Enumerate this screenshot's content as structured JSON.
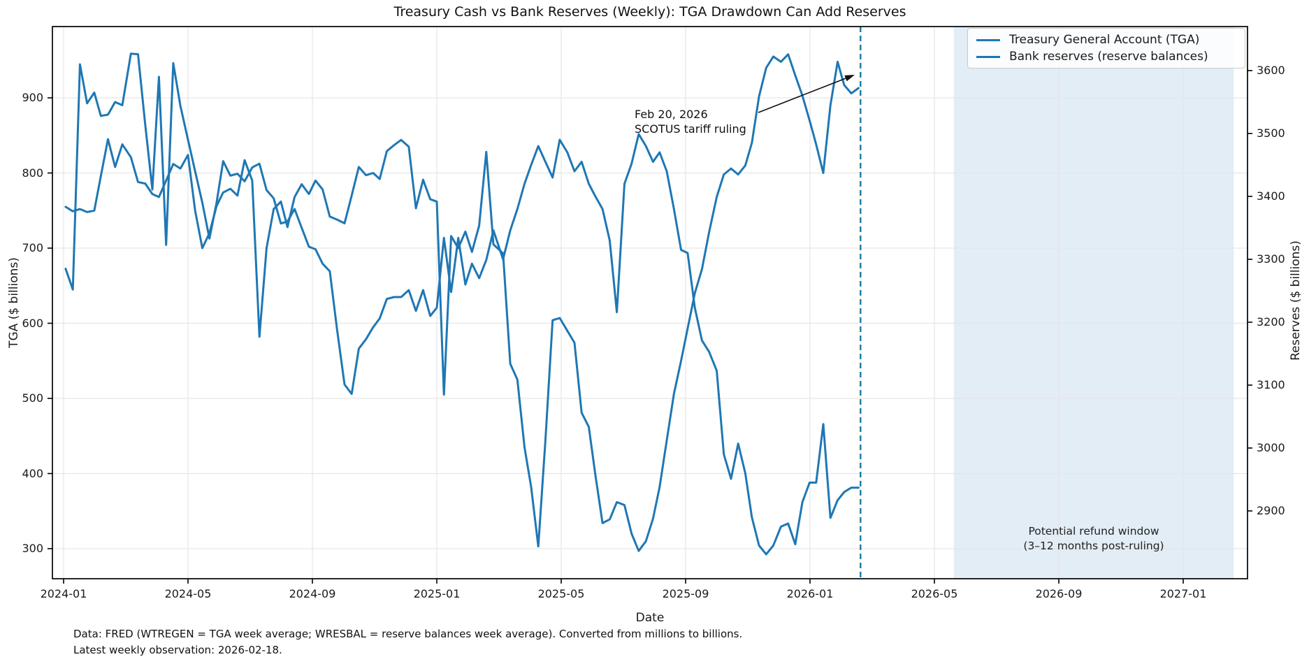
{
  "title": "Treasury Cash vs Bank Reserves (Weekly): TGA Drawdown Can Add Reserves",
  "axes": {
    "x_label": "Date",
    "y_left_label": "TGA ($ billions)",
    "y_right_label": "Reserves ($ billions)",
    "x_tick_labels": [
      "2024-01",
      "2024-05",
      "2024-09",
      "2025-01",
      "2025-05",
      "2025-09",
      "2026-01",
      "2026-05",
      "2026-09",
      "2027-01"
    ],
    "y_left_ticks": [
      300,
      400,
      500,
      600,
      700,
      800,
      900
    ],
    "y_right_ticks": [
      2900,
      3000,
      3100,
      3200,
      3300,
      3400,
      3500,
      3600
    ]
  },
  "legend": {
    "items": [
      {
        "label": "Treasury General Account (TGA)",
        "color": "#1f77b4"
      },
      {
        "label": "Bank reserves (reserve balances)",
        "color": "#1f77b4"
      }
    ]
  },
  "annotation": {
    "line1": "Feb 20, 2026",
    "line2": "SCOTUS tariff ruling"
  },
  "event_line": {
    "date": "2026-02-20",
    "color": "#1b7a9e"
  },
  "refund_band": {
    "start": "2026-05-20",
    "end": "2027-02-20",
    "color": "rgba(31,119,180,0.13)",
    "label_line1": "Potential refund window",
    "label_line2": "(3–12 months post-ruling)"
  },
  "footer": {
    "line1": "Data: FRED (WTREGEN = TGA week average; WRESBAL = reserve balances week average). Converted from millions to billions.",
    "line2": "Latest weekly observation: 2026-02-18."
  },
  "chart_data": {
    "type": "line",
    "title": "Treasury Cash vs Bank Reserves (Weekly): TGA Drawdown Can Add Reserves",
    "xlabel": "Date",
    "ylabel_left": "TGA ($ billions)",
    "ylabel_right": "Reserves ($ billions)",
    "x_range": [
      "2023-12-20",
      "2027-03-03"
    ],
    "ylim_left": [
      260,
      995
    ],
    "ylim_right": [
      2792,
      3670
    ],
    "grid": true,
    "legend_position": "upper right",
    "line_color": "#1f77b4",
    "dates": [
      "2024-01-03",
      "2024-01-10",
      "2024-01-17",
      "2024-01-24",
      "2024-01-31",
      "2024-02-07",
      "2024-02-14",
      "2024-02-21",
      "2024-02-28",
      "2024-03-06",
      "2024-03-13",
      "2024-03-20",
      "2024-03-27",
      "2024-04-03",
      "2024-04-10",
      "2024-04-17",
      "2024-04-24",
      "2024-05-01",
      "2024-05-08",
      "2024-05-15",
      "2024-05-22",
      "2024-05-29",
      "2024-06-05",
      "2024-06-12",
      "2024-06-19",
      "2024-06-26",
      "2024-07-03",
      "2024-07-10",
      "2024-07-17",
      "2024-07-24",
      "2024-07-31",
      "2024-08-07",
      "2024-08-14",
      "2024-08-21",
      "2024-08-28",
      "2024-09-04",
      "2024-09-11",
      "2024-09-18",
      "2024-09-25",
      "2024-10-02",
      "2024-10-09",
      "2024-10-16",
      "2024-10-23",
      "2024-10-30",
      "2024-11-06",
      "2024-11-13",
      "2024-11-20",
      "2024-11-27",
      "2024-12-04",
      "2024-12-11",
      "2024-12-18",
      "2024-12-25",
      "2025-01-01",
      "2025-01-08",
      "2025-01-15",
      "2025-01-22",
      "2025-01-29",
      "2025-02-05",
      "2025-02-12",
      "2025-02-19",
      "2025-02-26",
      "2025-03-05",
      "2025-03-12",
      "2025-03-19",
      "2025-03-26",
      "2025-04-02",
      "2025-04-09",
      "2025-04-16",
      "2025-04-23",
      "2025-04-30",
      "2025-05-07",
      "2025-05-14",
      "2025-05-21",
      "2025-05-28",
      "2025-06-04",
      "2025-06-11",
      "2025-06-18",
      "2025-06-25",
      "2025-07-02",
      "2025-07-09",
      "2025-07-16",
      "2025-07-23",
      "2025-07-30",
      "2025-08-06",
      "2025-08-13",
      "2025-08-20",
      "2025-08-27",
      "2025-09-03",
      "2025-09-10",
      "2025-09-17",
      "2025-09-24",
      "2025-10-01",
      "2025-10-08",
      "2025-10-15",
      "2025-10-22",
      "2025-10-29",
      "2025-11-05",
      "2025-11-12",
      "2025-11-19",
      "2025-11-26",
      "2025-12-03",
      "2025-12-10",
      "2025-12-17",
      "2025-12-24",
      "2025-12-31",
      "2026-01-07",
      "2026-01-14",
      "2026-01-21",
      "2026-01-28",
      "2026-02-04",
      "2026-02-11",
      "2026-02-18"
    ],
    "series": [
      {
        "name": "Treasury General Account (TGA)",
        "axis": "left",
        "values": [
          755,
          749,
          752,
          748,
          750,
          796,
          845,
          808,
          838,
          821,
          788,
          786,
          772,
          768,
          790,
          812,
          806,
          824,
          750,
          700,
          720,
          756,
          774,
          779,
          770,
          817,
          790,
          582,
          700,
          752,
          762,
          728,
          768,
          785,
          772,
          790,
          778,
          742,
          738,
          733,
          770,
          808,
          797,
          800,
          792,
          829,
          837,
          844,
          835,
          753,
          791,
          765,
          762,
          505,
          716,
          700,
          722,
          695,
          730,
          828,
          705,
          693,
          546,
          525,
          435,
          382,
          303,
          444,
          604,
          607,
          590,
          574,
          481,
          462,
          398,
          334,
          339,
          362,
          358,
          320,
          297,
          310,
          340,
          382,
          444,
          506,
          550,
          593,
          640,
          672,
          721,
          768,
          798,
          806,
          798,
          810,
          840,
          902,
          940,
          955,
          948,
          958,
          930,
          903,
          870,
          838,
          800,
          890,
          948,
          917,
          906,
          913
        ]
      },
      {
        "name": "Bank reserves (reserve balances)",
        "axis": "right",
        "values": [
          3285,
          3252,
          3610,
          3548,
          3565,
          3528,
          3530,
          3550,
          3545,
          3627,
          3626,
          3514,
          3411,
          3590,
          3323,
          3612,
          3544,
          3490,
          3440,
          3390,
          3333,
          3390,
          3456,
          3433,
          3436,
          3424,
          3446,
          3452,
          3410,
          3397,
          3357,
          3360,
          3380,
          3350,
          3320,
          3316,
          3293,
          3281,
          3190,
          3101,
          3086,
          3158,
          3173,
          3192,
          3206,
          3237,
          3240,
          3240,
          3251,
          3218,
          3251,
          3210,
          3223,
          3334,
          3248,
          3334,
          3260,
          3293,
          3270,
          3299,
          3346,
          3300,
          3346,
          3380,
          3420,
          3450,
          3480,
          3455,
          3430,
          3490,
          3470,
          3440,
          3455,
          3420,
          3400,
          3380,
          3330,
          3216,
          3420,
          3452,
          3499,
          3480,
          3455,
          3470,
          3440,
          3380,
          3315,
          3310,
          3223,
          3171,
          3153,
          3123,
          2990,
          2951,
          3007,
          2960,
          2890,
          2845,
          2831,
          2845,
          2875,
          2880,
          2847,
          2914,
          2945,
          2945,
          3038,
          2889,
          2917,
          2930,
          2937,
          2937
        ]
      }
    ]
  }
}
